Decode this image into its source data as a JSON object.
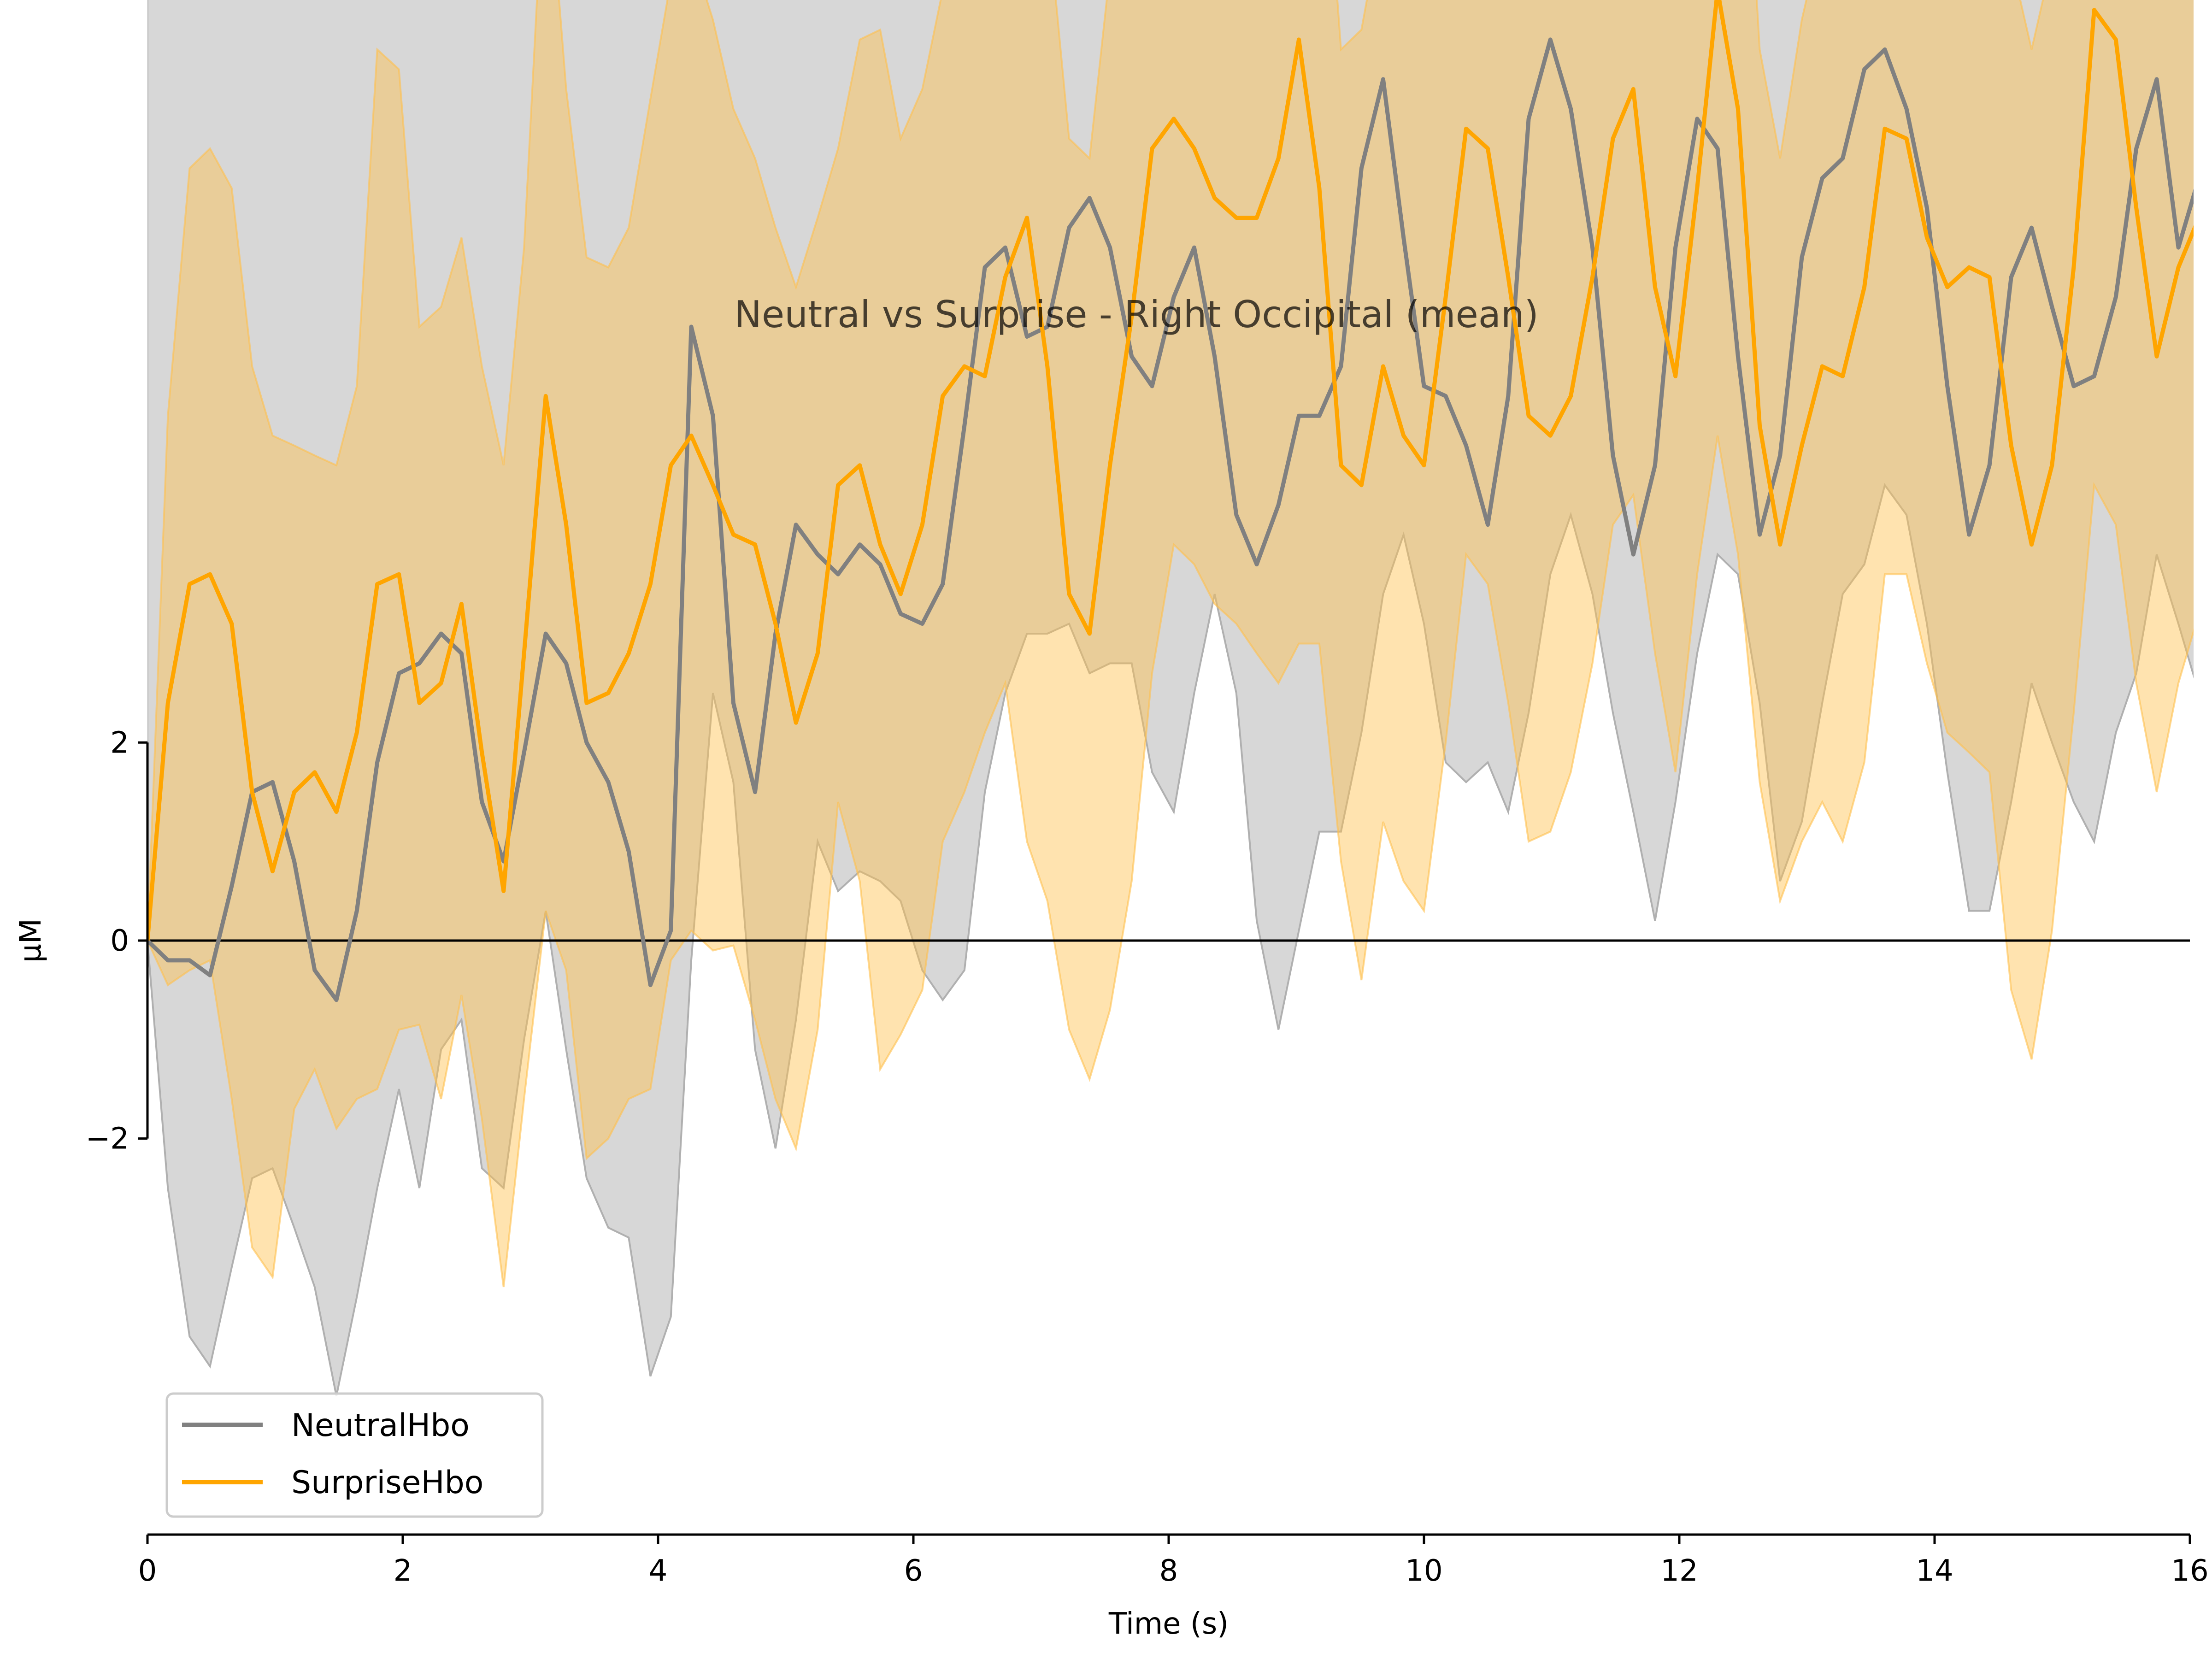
{
  "chart_data": {
    "type": "line",
    "title": "Neutral vs Surprise - Right Occipital (mean)",
    "xlabel": "Time (s)",
    "ylabel": "µM",
    "xlim": [
      0,
      16
    ],
    "ylim": [
      -6,
      9.5
    ],
    "x_ticks": [
      "0",
      "2",
      "4",
      "6",
      "8",
      "10",
      "12",
      "14",
      "16"
    ],
    "y_ticks": [
      "−2",
      "0",
      "2"
    ],
    "legend": {
      "location": "lower-left",
      "entries": [
        "NeutralHbo",
        "SurpriseHbo"
      ]
    },
    "grid": false,
    "zero_line": true,
    "x": [
      0.0,
      0.16,
      0.33,
      0.49,
      0.66,
      0.82,
      0.98,
      1.15,
      1.31,
      1.48,
      1.64,
      1.8,
      1.97,
      2.13,
      2.3,
      2.46,
      2.62,
      2.79,
      2.95,
      3.12,
      3.28,
      3.44,
      3.61,
      3.77,
      3.94,
      4.1,
      4.26,
      4.43,
      4.59,
      4.76,
      4.92,
      5.08,
      5.25,
      5.41,
      5.58,
      5.74,
      5.9,
      6.07,
      6.23,
      6.4,
      6.56,
      6.72,
      6.89,
      7.05,
      7.22,
      7.38,
      7.54,
      7.71,
      7.87,
      8.04,
      8.2,
      8.36,
      8.53,
      8.69,
      8.86,
      9.02,
      9.18,
      9.35,
      9.51,
      9.68,
      9.84,
      10.0,
      10.17,
      10.33,
      10.5,
      10.66,
      10.82,
      10.99,
      11.15,
      11.32,
      11.48,
      11.64,
      11.81,
      11.97,
      12.14,
      12.3,
      12.46,
      12.63,
      12.79,
      12.96,
      13.12,
      13.28,
      13.45,
      13.61,
      13.78,
      13.94,
      14.1,
      14.27,
      14.43,
      14.6,
      14.76,
      14.92,
      15.09,
      15.25,
      15.42,
      15.58,
      15.74,
      15.91,
      16.07
    ],
    "series": [
      {
        "name": "NeutralHbo",
        "color": "#808080",
        "values": [
          0.0,
          -0.2,
          -0.2,
          -0.35,
          0.55,
          1.5,
          1.6,
          0.8,
          -0.3,
          -0.6,
          0.3,
          1.8,
          2.7,
          2.8,
          3.1,
          2.9,
          1.4,
          0.8,
          1.9,
          3.1,
          2.8,
          2.0,
          1.6,
          0.9,
          -0.45,
          0.1,
          6.2,
          5.3,
          2.4,
          1.5,
          3.1,
          4.2,
          3.9,
          3.7,
          4.0,
          3.8,
          3.3,
          3.2,
          3.6,
          5.2,
          6.8,
          7.0,
          6.1,
          6.2,
          7.2,
          7.5,
          7.0,
          5.9,
          5.6,
          6.5,
          7.0,
          5.9,
          4.3,
          3.8,
          4.4,
          5.3,
          5.3,
          5.8,
          7.8,
          8.7,
          7.1,
          5.6,
          5.5,
          5.0,
          4.2,
          5.5,
          8.3,
          9.1,
          8.4,
          7.0,
          4.9,
          3.9,
          4.8,
          7.0,
          8.3,
          8.0,
          5.9,
          4.1,
          4.9,
          6.9,
          7.7,
          7.9,
          8.8,
          9.0,
          8.4,
          7.4,
          5.6,
          4.1,
          4.8,
          6.7,
          7.2,
          6.4,
          5.6,
          5.7,
          6.5,
          8.0,
          8.7,
          7.0,
          7.7
        ]
      },
      {
        "name": "SurpriseHbo",
        "color": "#FFA500",
        "values": [
          0.0,
          2.4,
          3.6,
          3.7,
          3.2,
          1.5,
          0.7,
          1.5,
          1.7,
          1.3,
          2.1,
          3.6,
          3.7,
          2.4,
          2.6,
          3.4,
          1.9,
          0.5,
          2.9,
          5.5,
          4.2,
          2.4,
          2.5,
          2.9,
          3.6,
          4.8,
          5.1,
          4.6,
          4.1,
          4.0,
          3.2,
          2.2,
          2.9,
          4.6,
          4.8,
          4.0,
          3.5,
          4.2,
          5.5,
          5.8,
          5.7,
          6.7,
          7.3,
          5.8,
          3.5,
          3.1,
          4.8,
          6.3,
          8.0,
          8.3,
          8.0,
          7.5,
          7.3,
          7.3,
          7.9,
          9.1,
          7.6,
          4.8,
          4.6,
          5.8,
          5.1,
          4.8,
          6.5,
          8.2,
          8.0,
          6.7,
          5.3,
          5.1,
          5.5,
          6.7,
          8.1,
          8.6,
          6.6,
          5.7,
          7.6,
          9.6,
          8.4,
          5.2,
          4.0,
          5.0,
          5.8,
          5.7,
          6.6,
          8.2,
          8.1,
          7.1,
          6.6,
          6.8,
          6.7,
          5.0,
          4.0,
          4.8,
          6.8,
          9.4,
          9.1,
          7.4,
          5.9,
          6.8,
          7.3
        ]
      }
    ],
    "confidence_bands": [
      {
        "series": "NeutralHbo",
        "color": "#b0b0b0",
        "lower": [
          0.0,
          -2.5,
          -4.0,
          -4.3,
          -3.3,
          -2.4,
          -2.3,
          -2.9,
          -3.5,
          -4.6,
          -3.6,
          -2.5,
          -1.5,
          -2.5,
          -1.1,
          -0.8,
          -2.3,
          -2.5,
          -1.0,
          0.3,
          -1.1,
          -2.4,
          -2.9,
          -3.0,
          -4.4,
          -3.8,
          -0.2,
          2.5,
          1.6,
          -1.1,
          -2.1,
          -0.8,
          1.0,
          0.5,
          0.7,
          0.6,
          0.4,
          -0.3,
          -0.6,
          -0.3,
          1.5,
          2.5,
          3.1,
          3.1,
          3.2,
          2.7,
          2.8,
          2.8,
          1.7,
          1.3,
          2.5,
          3.5,
          2.5,
          0.2,
          -0.9,
          0.1,
          1.1,
          1.1,
          2.1,
          3.5,
          4.1,
          3.2,
          1.8,
          1.6,
          1.8,
          1.3,
          2.3,
          3.7,
          4.3,
          3.5,
          2.3,
          1.3,
          0.2,
          1.4,
          2.9,
          3.9,
          3.7,
          2.4,
          0.6,
          1.2,
          2.4,
          3.5,
          3.8,
          4.6,
          4.3,
          3.2,
          1.7,
          0.3,
          0.3,
          1.4,
          2.6,
          2.0,
          1.4,
          1.0,
          2.1,
          2.7,
          3.9,
          3.2,
          2.5
        ]
      },
      {
        "series": "SurpriseHbo",
        "color": "#ffc04d",
        "lower": [
          0.0,
          -0.45,
          -0.3,
          -0.2,
          -1.6,
          -3.1,
          -3.4,
          -1.7,
          -1.3,
          -1.9,
          -1.6,
          -1.5,
          -0.9,
          -0.85,
          -1.6,
          -0.55,
          -1.8,
          -3.5,
          -1.6,
          0.3,
          -0.3,
          -2.2,
          -2.0,
          -1.6,
          -1.5,
          -0.2,
          0.1,
          -0.1,
          -0.05,
          -0.8,
          -1.6,
          -2.1,
          -0.9,
          1.4,
          0.6,
          -1.3,
          -0.95,
          -0.5,
          1.0,
          1.5,
          2.1,
          2.6,
          1.0,
          0.4,
          -0.9,
          -1.4,
          -0.7,
          0.6,
          2.7,
          4.0,
          3.8,
          3.4,
          3.2,
          2.9,
          2.6,
          3.0,
          3.0,
          0.8,
          -0.4,
          1.2,
          0.6,
          0.3,
          2.0,
          3.9,
          3.6,
          2.4,
          1.0,
          1.1,
          1.7,
          2.8,
          4.2,
          4.5,
          2.9,
          1.7,
          3.7,
          5.1,
          3.9,
          1.6,
          0.4,
          1.0,
          1.4,
          1.0,
          1.8,
          3.7,
          3.7,
          2.8,
          2.1,
          1.9,
          1.7,
          -0.5,
          -1.2,
          0.1,
          2.3,
          4.6,
          4.2,
          2.6,
          1.5,
          2.6,
          3.3
        ],
        "upper": [
          0.0,
          5.3,
          7.8,
          8.0,
          7.6,
          5.8,
          5.1,
          5.0,
          4.9,
          4.8,
          5.6,
          9.0,
          8.8,
          6.2,
          6.4,
          7.1,
          5.8,
          4.8,
          7.0,
          11.2,
          8.6,
          6.9,
          6.8,
          7.2,
          8.5,
          9.7,
          10.0,
          9.3,
          8.4,
          7.9,
          7.2,
          6.6,
          7.3,
          8.0,
          9.1,
          9.2,
          8.1,
          8.6,
          9.6,
          10.3,
          10.9,
          11.1,
          10.9,
          10.4,
          8.1,
          7.9,
          9.8,
          11.6,
          12.5,
          12.7,
          12.4,
          11.8,
          11.2,
          11.3,
          11.8,
          12.9,
          12.0,
          9.0,
          9.2,
          10.4,
          9.6,
          9.7,
          11.2,
          12.4,
          12.1,
          11.1,
          9.8,
          9.6,
          10.3,
          10.9,
          12.0,
          13.0,
          10.6,
          9.6,
          11.2,
          14.2,
          12.7,
          9.0,
          7.9,
          9.3,
          10.2,
          10.0,
          11.5,
          12.6,
          12.5,
          11.7,
          11.3,
          11.6,
          11.4,
          9.9,
          9.0,
          9.9,
          11.1,
          14.0,
          14.0,
          12.3,
          10.6,
          11.1,
          11.5
        ]
      }
    ]
  }
}
